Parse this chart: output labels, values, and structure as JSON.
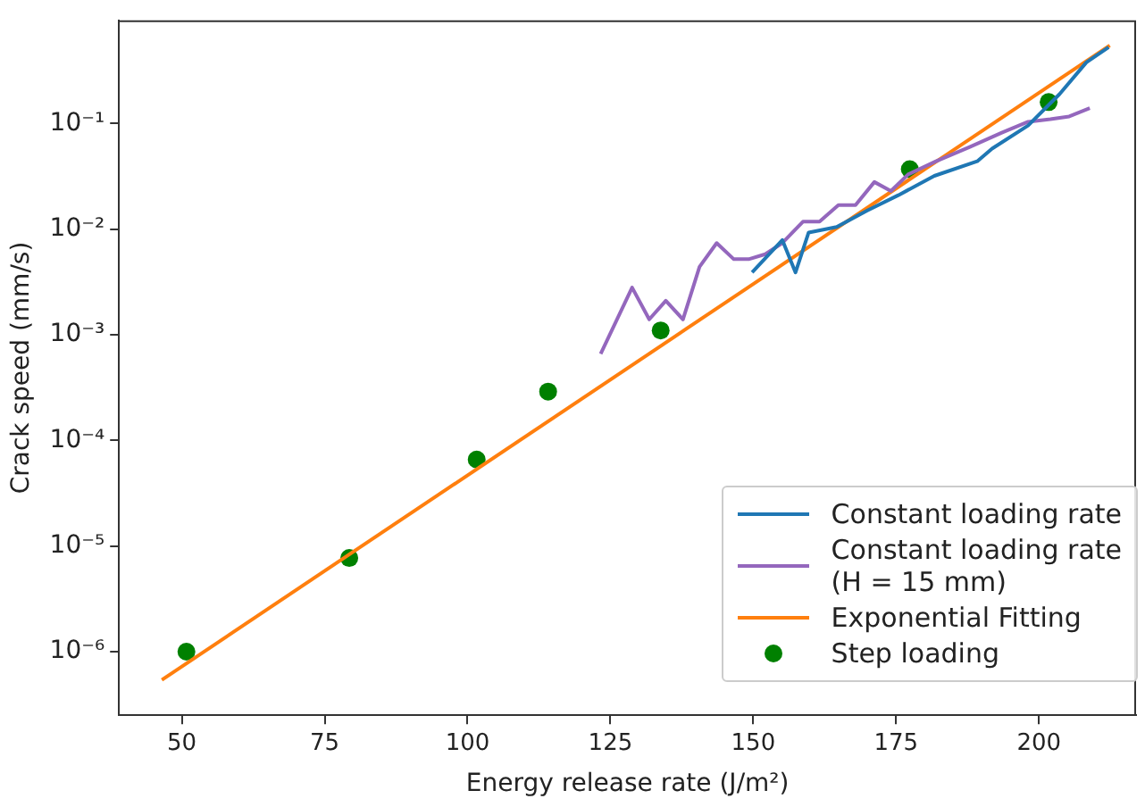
{
  "chart_data": {
    "type": "line",
    "xlabel": "Energy release rate (J/m²)",
    "ylabel": "Crack speed (mm/s)",
    "log": "y",
    "xlim": [
      39,
      217
    ],
    "xticks": [
      50,
      75,
      100,
      125,
      150,
      175,
      200
    ],
    "ylim": [
      2.5e-07,
      0.95
    ],
    "yticks": [
      {
        "value": 1e-06,
        "label": "10⁻⁶"
      },
      {
        "value": 1e-05,
        "label": "10⁻⁵"
      },
      {
        "value": 0.0001,
        "label": "10⁻⁴"
      },
      {
        "value": 0.001,
        "label": "10⁻³"
      },
      {
        "value": 0.01,
        "label": "10⁻²"
      },
      {
        "value": 0.1,
        "label": "10⁻¹"
      }
    ],
    "grid": false,
    "legend": "bottom right",
    "line_style": "solid",
    "series": [
      {
        "name": "Constant loading rate",
        "color": "#1f77b4",
        "x": [
          149.8,
          155.1,
          157.4,
          159.7,
          164.6,
          169.9,
          175.4,
          181.7,
          189.2,
          191.8,
          198.1,
          203.6,
          208.3,
          212.2
        ],
        "values": [
          0.0039,
          0.0079,
          0.0039,
          0.0093,
          0.0105,
          0.015,
          0.021,
          0.032,
          0.044,
          0.058,
          0.096,
          0.19,
          0.38,
          0.53
        ]
      },
      {
        "name": "Constant loading rate\n (H = 15 mm)",
        "color": "#9467bd",
        "x": [
          123.3,
          128.8,
          131.8,
          134.7,
          137.7,
          140.6,
          143.6,
          146.6,
          149.2,
          152.1,
          155.1,
          158.7,
          161.6,
          164.9,
          167.9,
          171.2,
          174.1,
          177.1,
          182.0,
          187.9,
          193.5,
          198.1,
          202.0,
          205.3,
          208.9
        ],
        "values": [
          0.00066,
          0.0028,
          0.0014,
          0.0021,
          0.0014,
          0.0044,
          0.0074,
          0.0052,
          0.0052,
          0.0058,
          0.0074,
          0.0118,
          0.0118,
          0.0169,
          0.0169,
          0.028,
          0.023,
          0.033,
          0.044,
          0.06,
          0.082,
          0.104,
          0.11,
          0.117,
          0.14
        ]
      },
      {
        "name": "Exponential Fitting",
        "color": "#ff7f0e",
        "x": [
          46.5,
          212.4
        ],
        "values": [
          5.4e-07,
          0.55
        ]
      },
      {
        "name": "Step loading",
        "type": "scatter",
        "marker": "circle",
        "color": "#008000",
        "x": [
          50.8,
          79.3,
          101.6,
          114.1,
          133.8,
          177.4,
          201.7
        ],
        "values": [
          1e-06,
          7.7e-06,
          6.6e-05,
          0.00029,
          0.0011,
          0.037,
          0.16
        ]
      }
    ]
  }
}
